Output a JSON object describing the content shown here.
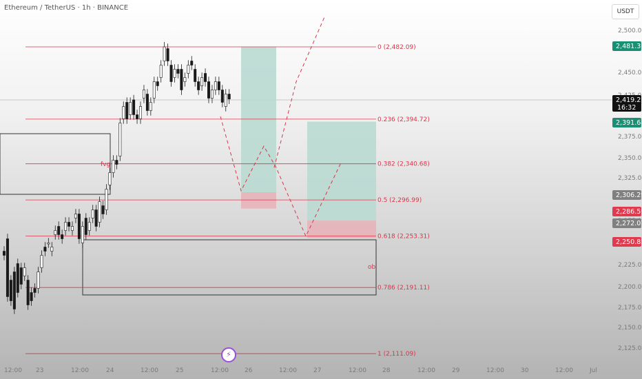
{
  "header": {
    "title": "Ethereum / TetherUS · 1h · BINANCE"
  },
  "unit_label": "USDT",
  "colors": {
    "fib": "#d8364a",
    "up": "#ffffff",
    "down": "#1a1a1a",
    "target": "#b9d9d1",
    "stop": "#e7b4ba",
    "badge_green": "#1b8f74",
    "badge_red": "#e03a4e",
    "badge_gray": "#808080",
    "badge_black": "#111111"
  },
  "chart_data": {
    "type": "candlestick",
    "symbol": "ETHUSDT",
    "timeframe": "1h",
    "y_ticks": [
      "2,500.00",
      "2,450.00",
      "2,425.00",
      "2,375.00",
      "2,350.00",
      "2,325.00",
      "2,275.00",
      "2,250.00",
      "2,225.00",
      "2,200.00",
      "2,175.00",
      "2,150.00",
      "2,125.00"
    ],
    "x_ticks": [
      "12:00",
      "23",
      "12:00",
      "24",
      "12:00",
      "25",
      "12:00",
      "26",
      "12:00",
      "27",
      "12:00",
      "28",
      "12:00",
      "29",
      "12:00",
      "30",
      "12:00",
      "Jul"
    ],
    "fib_levels": [
      {
        "label": "0 (2,482.09)",
        "price": 2482.09
      },
      {
        "label": "0.236 (2,394.72)",
        "price": 2394.72
      },
      {
        "label": "0.382 (2,340.68)",
        "price": 2340.68
      },
      {
        "label": "0.5 (2,296.99)",
        "price": 2296.99
      },
      {
        "label": "0.618 (2,253.31)",
        "price": 2253.31
      },
      {
        "label": "0.786 (2,191.11)",
        "price": 2191.11
      },
      {
        "label": "1 (2,111.09)",
        "price": 2111.09
      }
    ],
    "price_badges": [
      {
        "text": "2,481.36",
        "color": "green"
      },
      {
        "text": "2,419.21",
        "sub": "16:32",
        "color": "black"
      },
      {
        "text": "2,391.64",
        "color": "green"
      },
      {
        "text": "2,306.29",
        "color": "gray"
      },
      {
        "text": "2,286.59",
        "color": "red"
      },
      {
        "text": "2,272.01",
        "color": "gray"
      },
      {
        "text": "2,250.85",
        "color": "red"
      }
    ],
    "annotations": [
      "fvg",
      "ob"
    ],
    "last_price": 2419.21
  }
}
